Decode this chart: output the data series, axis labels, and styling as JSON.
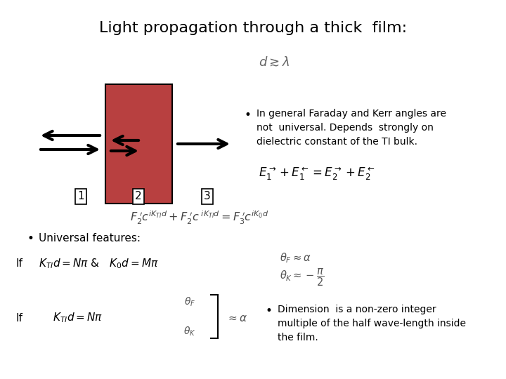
{
  "title": "Light propagation through a thick  film:",
  "background_color": "#ffffff",
  "rect_color": "#b84040",
  "bullet1_text": "In general Faraday and Kerr angles are\nnot  universal. Depends  strongly on\ndielectric constant of the TI bulk.",
  "bullet2_text": "Universal features:",
  "bullet3_text": "Dimension  is a non-zero integer\nmultiple of the half wave-length inside\nthe film.",
  "eq1_text": "$E_1^{\\vec{}} + E_1^{\\leftarrow} = E_2^{\\vec{}} + E_2^{\\leftarrow}$",
  "if1_eq": "$K_{TI}d = N\\pi$ &   $K_0d = M\\pi$",
  "if2_eq": "$K_{TI}d = N\\pi$",
  "if1_theta_text": "$\\theta_F \\approx \\alpha$",
  "if1_thetak_text": "$\\theta_K \\approx -\\dfrac{\\pi}{2}$",
  "if2_approx_text": "$\\approx \\alpha$",
  "if2_thetaF_text": "$\\theta_F$",
  "if2_thetaK_text": "$\\theta_K$",
  "d_lambda_text": "$d \\gtrsim \\lambda$"
}
